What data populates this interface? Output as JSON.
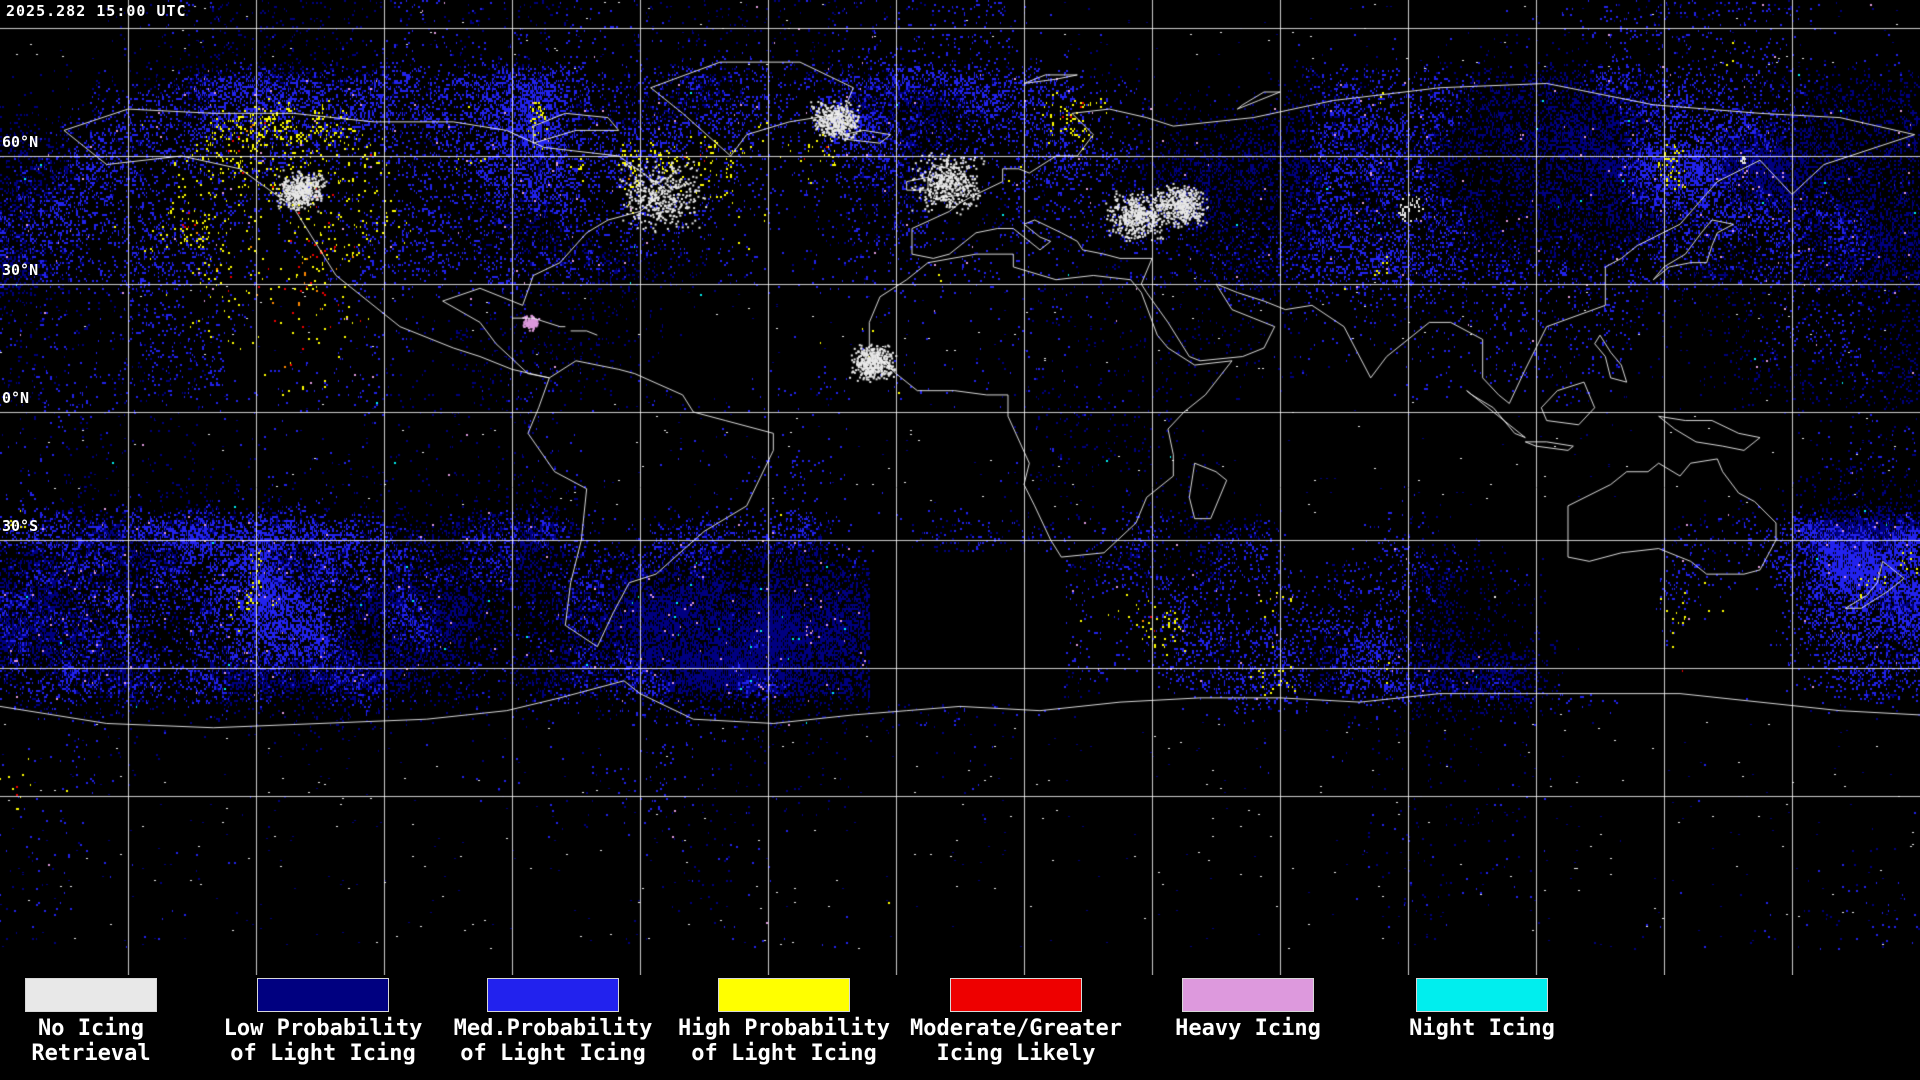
{
  "header": {
    "timestamp": "2025.282 15:00 UTC"
  },
  "map": {
    "background_color": "#000000",
    "grid_color": "#ffffff",
    "coastline_color": "#ffffff",
    "latitude_labels": [
      {
        "text": "60°N"
      },
      {
        "text": "30°N"
      },
      {
        "text": "0°N"
      },
      {
        "text": "30°S"
      }
    ]
  },
  "legend": {
    "items": [
      {
        "id": "no-icing-retrieval",
        "color": "#e8e8e8",
        "line1": "No Icing",
        "line2": "Retrieval"
      },
      {
        "id": "low-probability-light-icing",
        "color": "#000080",
        "line1": "Low Probability",
        "line2": "of Light Icing"
      },
      {
        "id": "med-probability-light-icing",
        "color": "#2222ee",
        "line1": "Med.Probability",
        "line2": "of Light Icing"
      },
      {
        "id": "high-probability-light-icing",
        "color": "#ffff00",
        "line1": "High Probability",
        "line2": "of Light Icing"
      },
      {
        "id": "moderate-greater-icing-likely",
        "color": "#ee0000",
        "line1": "Moderate/Greater",
        "line2": "Icing Likely"
      },
      {
        "id": "heavy-icing",
        "color": "#dd99dd",
        "line1": "Heavy Icing",
        "line2": ""
      },
      {
        "id": "night-icing",
        "color": "#00eeee",
        "line1": "Night Icing",
        "line2": ""
      }
    ]
  }
}
